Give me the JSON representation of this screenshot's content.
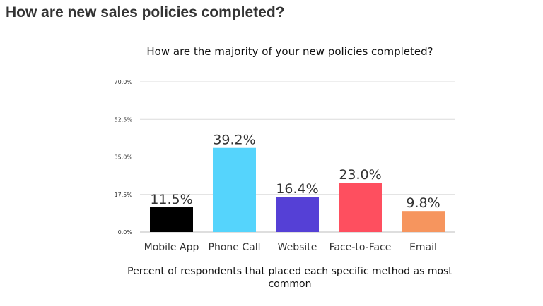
{
  "page": {
    "heading": "How are new sales policies completed?"
  },
  "chart_data": {
    "type": "bar",
    "title": "How are the majority of your new policies completed?",
    "xlabel": "Percent of respondents that placed each specific method as most common",
    "ylabel": "",
    "categories": [
      "Mobile App",
      "Phone Call",
      "Website",
      "Face-to-Face",
      "Email"
    ],
    "values": [
      11.5,
      39.2,
      16.4,
      23.0,
      9.8
    ],
    "value_labels": [
      "11.5%",
      "39.2%",
      "16.4%",
      "23.0%",
      "9.8%"
    ],
    "colors": [
      "#000000",
      "#55d4fc",
      "#5540d6",
      "#fe4f5f",
      "#f6955e"
    ],
    "ylim": [
      0,
      70
    ],
    "yticks": [
      0,
      17.5,
      35,
      52.5,
      70
    ],
    "ytick_labels": [
      "0.0%",
      "17.5%",
      "35.0%",
      "52.5%",
      "70.0%"
    ],
    "grid": true,
    "legend": "none"
  }
}
